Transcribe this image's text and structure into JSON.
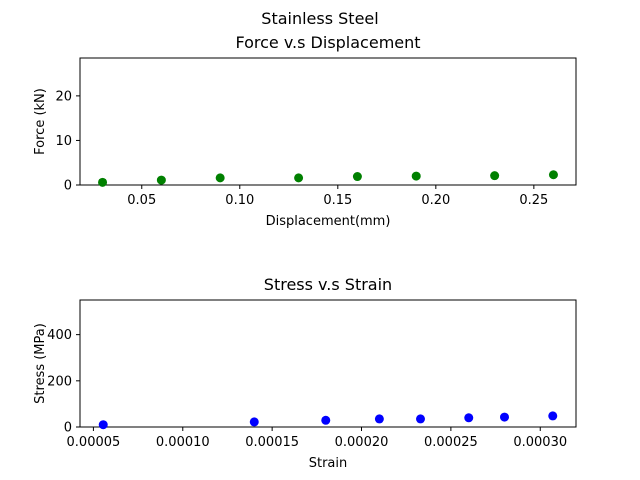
{
  "figure_title": "Stainless Steel",
  "chart_data": [
    {
      "type": "scatter",
      "title": "Force v.s Displacement",
      "xlabel": "Displacement(mm)",
      "ylabel": "Force (kN)",
      "xlim": [
        0.0185,
        0.2715
      ],
      "ylim": [
        0,
        28.5
      ],
      "xticks": [
        0.05,
        0.1,
        0.15,
        0.2,
        0.25
      ],
      "xtick_labels": [
        "0.05",
        "0.10",
        "0.15",
        "0.20",
        "0.25"
      ],
      "yticks": [
        0,
        10,
        20
      ],
      "ytick_labels": [
        "0",
        "10",
        "20"
      ],
      "grid": false,
      "series": [
        {
          "color": "#008000",
          "x": [
            0.03,
            0.06,
            0.09,
            0.13,
            0.16,
            0.19,
            0.23,
            0.26
          ],
          "y": [
            0.6,
            1.1,
            1.6,
            1.6,
            1.9,
            2.0,
            2.1,
            2.3
          ]
        }
      ]
    },
    {
      "type": "scatter",
      "title": "Stress v.s Strain",
      "xlabel": "Strain",
      "ylabel": "Stress (MPa)",
      "xlim": [
        4.25e-05,
        0.00032
      ],
      "ylim": [
        0,
        550
      ],
      "xticks": [
        5e-05,
        0.0001,
        0.00015,
        0.0002,
        0.00025,
        0.0003
      ],
      "xtick_labels": [
        "0.00005",
        "0.00010",
        "0.00015",
        "0.00020",
        "0.00025",
        "0.00030"
      ],
      "yticks": [
        0,
        200,
        400
      ],
      "ytick_labels": [
        "0",
        "200",
        "400"
      ],
      "grid": false,
      "series": [
        {
          "color": "#0000ff",
          "x": [
            5.55e-05,
            0.00014,
            0.00018,
            0.00021,
            0.000233,
            0.00026,
            0.00028,
            0.000307
          ],
          "y": [
            10,
            22,
            29,
            35,
            35,
            40,
            43,
            48
          ]
        }
      ]
    }
  ]
}
